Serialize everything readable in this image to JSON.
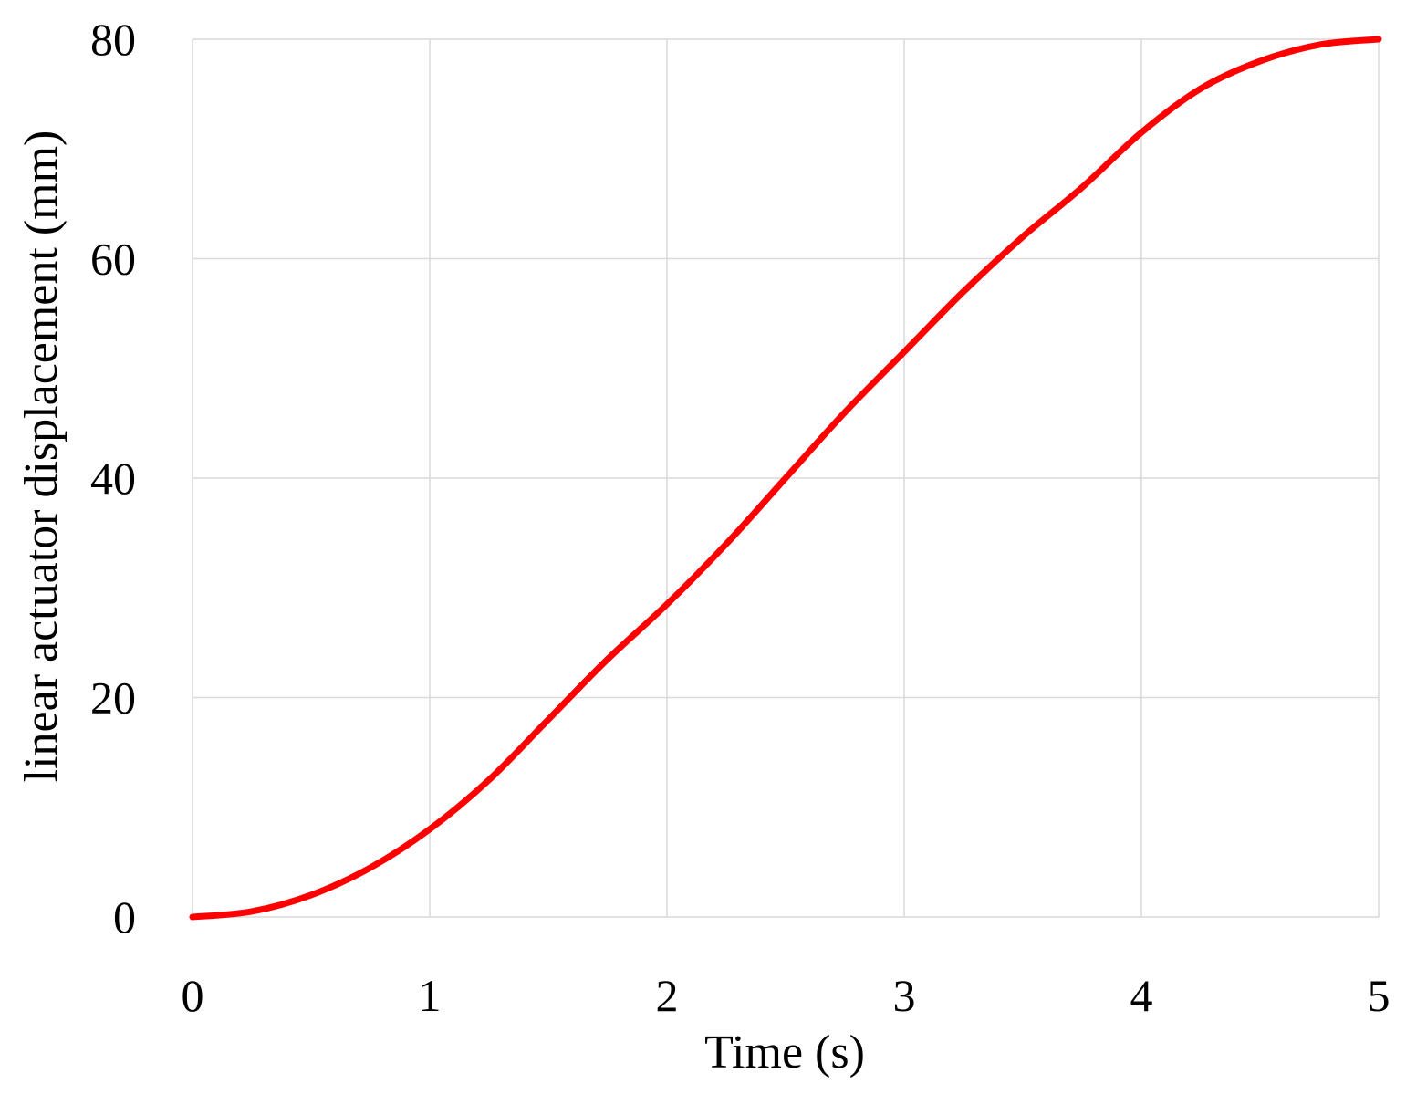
{
  "chart_data": {
    "type": "line",
    "title": "",
    "xlabel": "Time (s)",
    "ylabel": "linear actuator displacement (mm)",
    "xlim": [
      0,
      5
    ],
    "ylim": [
      0,
      80
    ],
    "x_ticks": [
      0,
      1,
      2,
      3,
      4,
      5
    ],
    "y_ticks": [
      0,
      20,
      40,
      60,
      80
    ],
    "grid": true,
    "legend": "none",
    "series": [
      {
        "color": "#ff0000",
        "x": [
          0,
          0.25,
          0.5,
          0.75,
          1.0,
          1.25,
          1.5,
          1.75,
          2.0,
          2.25,
          2.5,
          2.75,
          3.0,
          3.25,
          3.5,
          3.75,
          4.0,
          4.25,
          4.5,
          4.75,
          5.0
        ],
        "y": [
          0,
          0.5,
          2.0,
          4.5,
          8.0,
          12.5,
          18.0,
          23.5,
          28.5,
          34.0,
          40.0,
          46.0,
          51.5,
          57.0,
          62.0,
          66.5,
          71.5,
          75.5,
          78.0,
          79.5,
          80.0
        ]
      }
    ]
  }
}
